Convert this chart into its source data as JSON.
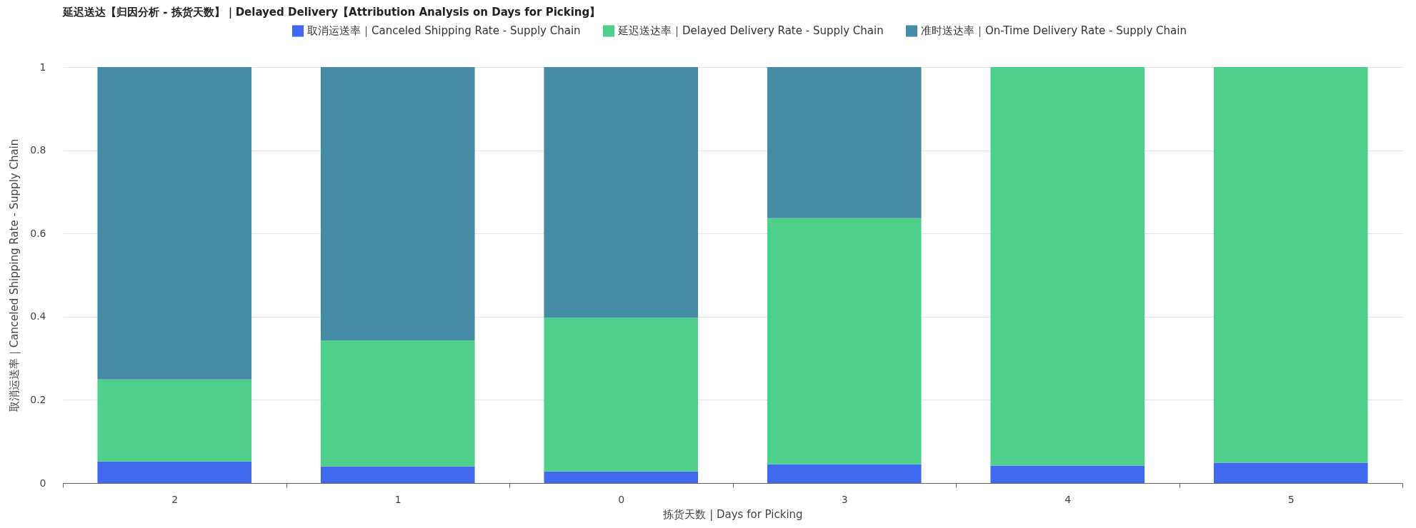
{
  "chart_data": {
    "type": "bar",
    "title": "延迟送达【归因分析 - 拣货天数】｜Delayed Delivery【Attribution Analysis on Days for Picking】",
    "xlabel": "拣货天数 | Days for Picking",
    "ylabel": "取消运送率｜Canceled Shipping Rate - Supply Chain",
    "categories": [
      "2",
      "1",
      "0",
      "3",
      "4",
      "5"
    ],
    "stacked": true,
    "series": [
      {
        "name": "取消运送率｜Canceled Shipping Rate - Supply Chain",
        "color": "#4169f0",
        "values": [
          0.052,
          0.04,
          0.028,
          0.045,
          0.042,
          0.049
        ]
      },
      {
        "name": "延迟送达率｜Delayed Delivery Rate - Supply Chain",
        "color": "#4ecf8a",
        "values": [
          0.197,
          0.303,
          0.369,
          0.592,
          0.958,
          0.951
        ]
      },
      {
        "name": "准时送达率｜On-Time Delivery Rate - Supply Chain",
        "color": "#448ca5",
        "values": [
          0.751,
          0.657,
          0.603,
          0.363,
          null,
          null
        ]
      }
    ],
    "ylim": [
      0,
      1
    ],
    "yticks": [
      0,
      0.2,
      0.4,
      0.6,
      0.8,
      1
    ],
    "grid": "y",
    "legend": "top"
  }
}
